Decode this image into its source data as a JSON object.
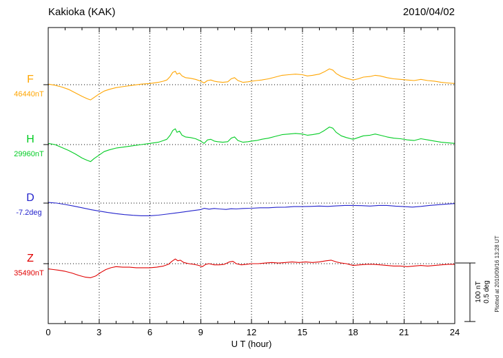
{
  "header": {
    "station_title": "Kakioka (KAK)",
    "date": "2010/04/02"
  },
  "axes": {
    "x_label": "U T (hour)",
    "x_tick_labels": [
      "0",
      "3",
      "6",
      "9",
      "12",
      "15",
      "18",
      "21",
      "24"
    ]
  },
  "scale_bar": {
    "nt_label": "100 nT",
    "deg_label": "0.5 deg"
  },
  "plot_note": "Plotted at 2010/09/16 13:28 UT",
  "chart_data": {
    "type": "line",
    "title": "Kakioka (KAK)",
    "date": "2010/04/02",
    "xlabel": "U T (hour)",
    "x_range": [
      0,
      24
    ],
    "x_ticks_hours": [
      0,
      3,
      6,
      9,
      12,
      15,
      18,
      21,
      24
    ],
    "grid": "dotted vertical gridlines every 3 hours; dotted horizontal baseline per component",
    "scale_reference": {
      "nT": 100,
      "deg": 0.5
    },
    "offsets_relative_to_baseline": true,
    "series": [
      {
        "name": "F",
        "baseline_label": "46440nT",
        "baseline_value": 46440,
        "unit": "nT",
        "color": "#FFA500",
        "points": [
          [
            0,
            1
          ],
          [
            0.4,
            -1
          ],
          [
            0.8,
            -4
          ],
          [
            1.2,
            -8
          ],
          [
            1.6,
            -14
          ],
          [
            2.0,
            -20
          ],
          [
            2.3,
            -24
          ],
          [
            2.5,
            -26
          ],
          [
            2.7,
            -22
          ],
          [
            3.0,
            -16
          ],
          [
            3.3,
            -11
          ],
          [
            3.6,
            -8
          ],
          [
            4.0,
            -5
          ],
          [
            4.5,
            -3
          ],
          [
            5.0,
            -1
          ],
          [
            5.5,
            1
          ],
          [
            6.0,
            2
          ],
          [
            6.5,
            4
          ],
          [
            6.8,
            6
          ],
          [
            7.0,
            8
          ],
          [
            7.2,
            14
          ],
          [
            7.35,
            21
          ],
          [
            7.5,
            23
          ],
          [
            7.6,
            18
          ],
          [
            7.75,
            20
          ],
          [
            7.9,
            15
          ],
          [
            8.1,
            12
          ],
          [
            8.4,
            11
          ],
          [
            8.7,
            9
          ],
          [
            9.0,
            6
          ],
          [
            9.2,
            3
          ],
          [
            9.4,
            7
          ],
          [
            9.6,
            8
          ],
          [
            9.8,
            6
          ],
          [
            10.0,
            5
          ],
          [
            10.3,
            4
          ],
          [
            10.6,
            5
          ],
          [
            10.8,
            10
          ],
          [
            11.0,
            12
          ],
          [
            11.2,
            7
          ],
          [
            11.5,
            4
          ],
          [
            11.8,
            5
          ],
          [
            12.0,
            6
          ],
          [
            12.3,
            7
          ],
          [
            12.6,
            8
          ],
          [
            13.0,
            10
          ],
          [
            13.4,
            13
          ],
          [
            13.8,
            16
          ],
          [
            14.2,
            17
          ],
          [
            14.6,
            18
          ],
          [
            15.0,
            17
          ],
          [
            15.3,
            15
          ],
          [
            15.6,
            16
          ],
          [
            16.0,
            18
          ],
          [
            16.3,
            22
          ],
          [
            16.6,
            27
          ],
          [
            16.8,
            25
          ],
          [
            17.0,
            19
          ],
          [
            17.3,
            14
          ],
          [
            17.6,
            11
          ],
          [
            18.0,
            8
          ],
          [
            18.3,
            10
          ],
          [
            18.6,
            13
          ],
          [
            19.0,
            14
          ],
          [
            19.3,
            16
          ],
          [
            19.6,
            15
          ],
          [
            20.0,
            12
          ],
          [
            20.4,
            10
          ],
          [
            20.8,
            9
          ],
          [
            21.2,
            8
          ],
          [
            21.6,
            7
          ],
          [
            22.0,
            9
          ],
          [
            22.4,
            7
          ],
          [
            22.8,
            6
          ],
          [
            23.2,
            4
          ],
          [
            23.6,
            3
          ],
          [
            24,
            2
          ]
        ]
      },
      {
        "name": "H",
        "baseline_label": "29960nT",
        "baseline_value": 29960,
        "unit": "nT",
        "color": "#00CC22",
        "points": [
          [
            0,
            2
          ],
          [
            0.4,
            0
          ],
          [
            0.8,
            -5
          ],
          [
            1.2,
            -10
          ],
          [
            1.6,
            -16
          ],
          [
            2.0,
            -23
          ],
          [
            2.3,
            -27
          ],
          [
            2.5,
            -29
          ],
          [
            2.7,
            -24
          ],
          [
            3.0,
            -18
          ],
          [
            3.3,
            -12
          ],
          [
            3.6,
            -9
          ],
          [
            4.0,
            -6
          ],
          [
            4.5,
            -4
          ],
          [
            5.0,
            -2
          ],
          [
            5.5,
            0
          ],
          [
            6.0,
            2
          ],
          [
            6.5,
            4
          ],
          [
            6.8,
            7
          ],
          [
            7.0,
            9
          ],
          [
            7.2,
            16
          ],
          [
            7.35,
            24
          ],
          [
            7.5,
            27
          ],
          [
            7.6,
            21
          ],
          [
            7.75,
            23
          ],
          [
            7.9,
            16
          ],
          [
            8.1,
            13
          ],
          [
            8.4,
            12
          ],
          [
            8.7,
            10
          ],
          [
            9.0,
            6
          ],
          [
            9.2,
            2
          ],
          [
            9.4,
            8
          ],
          [
            9.6,
            9
          ],
          [
            9.8,
            6
          ],
          [
            10.0,
            5
          ],
          [
            10.3,
            4
          ],
          [
            10.6,
            5
          ],
          [
            10.8,
            11
          ],
          [
            11.0,
            13
          ],
          [
            11.2,
            7
          ],
          [
            11.5,
            4
          ],
          [
            11.8,
            5
          ],
          [
            12.0,
            6
          ],
          [
            12.3,
            7
          ],
          [
            12.6,
            9
          ],
          [
            13.0,
            11
          ],
          [
            13.4,
            14
          ],
          [
            13.8,
            17
          ],
          [
            14.2,
            18
          ],
          [
            14.6,
            19
          ],
          [
            15.0,
            18
          ],
          [
            15.3,
            16
          ],
          [
            15.6,
            17
          ],
          [
            16.0,
            19
          ],
          [
            16.3,
            24
          ],
          [
            16.6,
            30
          ],
          [
            16.8,
            28
          ],
          [
            17.0,
            21
          ],
          [
            17.3,
            15
          ],
          [
            17.6,
            12
          ],
          [
            18.0,
            9
          ],
          [
            18.3,
            12
          ],
          [
            18.6,
            15
          ],
          [
            19.0,
            16
          ],
          [
            19.3,
            18
          ],
          [
            19.6,
            16
          ],
          [
            20.0,
            13
          ],
          [
            20.4,
            11
          ],
          [
            20.8,
            10
          ],
          [
            21.2,
            8
          ],
          [
            21.6,
            7
          ],
          [
            22.0,
            10
          ],
          [
            22.4,
            8
          ],
          [
            22.8,
            6
          ],
          [
            23.2,
            4
          ],
          [
            23.6,
            3
          ],
          [
            24,
            2
          ]
        ]
      },
      {
        "name": "D",
        "baseline_label": "-7.2deg",
        "baseline_value": -7.2,
        "unit": "deg",
        "color": "#2222CC",
        "points": [
          [
            0,
            0.005
          ],
          [
            0.5,
            0
          ],
          [
            1.0,
            -0.012
          ],
          [
            1.5,
            -0.025
          ],
          [
            2.0,
            -0.04
          ],
          [
            2.5,
            -0.055
          ],
          [
            3.0,
            -0.068
          ],
          [
            3.5,
            -0.08
          ],
          [
            4.0,
            -0.09
          ],
          [
            4.5,
            -0.098
          ],
          [
            5.0,
            -0.104
          ],
          [
            5.5,
            -0.108
          ],
          [
            6.0,
            -0.108
          ],
          [
            6.5,
            -0.103
          ],
          [
            7.0,
            -0.094
          ],
          [
            7.5,
            -0.085
          ],
          [
            8.0,
            -0.075
          ],
          [
            8.5,
            -0.065
          ],
          [
            9.0,
            -0.055
          ],
          [
            9.2,
            -0.045
          ],
          [
            9.5,
            -0.052
          ],
          [
            9.8,
            -0.046
          ],
          [
            10.1,
            -0.05
          ],
          [
            10.5,
            -0.054
          ],
          [
            10.8,
            -0.048
          ],
          [
            11.1,
            -0.05
          ],
          [
            11.5,
            -0.046
          ],
          [
            12.0,
            -0.044
          ],
          [
            12.5,
            -0.04
          ],
          [
            13.0,
            -0.04
          ],
          [
            13.5,
            -0.036
          ],
          [
            14.0,
            -0.035
          ],
          [
            14.5,
            -0.03
          ],
          [
            15.0,
            -0.03
          ],
          [
            15.5,
            -0.028
          ],
          [
            16.0,
            -0.025
          ],
          [
            16.5,
            -0.028
          ],
          [
            17.0,
            -0.024
          ],
          [
            17.5,
            -0.02
          ],
          [
            18.0,
            -0.02
          ],
          [
            18.5,
            -0.022
          ],
          [
            19.0,
            -0.025
          ],
          [
            19.5,
            -0.02
          ],
          [
            20.0,
            -0.02
          ],
          [
            20.5,
            -0.026
          ],
          [
            21.0,
            -0.03
          ],
          [
            21.5,
            -0.034
          ],
          [
            22.0,
            -0.028
          ],
          [
            22.5,
            -0.02
          ],
          [
            23.0,
            -0.014
          ],
          [
            23.5,
            -0.008
          ],
          [
            24,
            -0.004
          ]
        ]
      },
      {
        "name": "Z",
        "baseline_label": "35490nT",
        "baseline_value": 35490,
        "unit": "nT",
        "color": "#E00000",
        "points": [
          [
            0,
            -9
          ],
          [
            0.3,
            -10
          ],
          [
            0.6,
            -11
          ],
          [
            1.0,
            -13
          ],
          [
            1.4,
            -16
          ],
          [
            1.8,
            -20
          ],
          [
            2.2,
            -23
          ],
          [
            2.5,
            -24
          ],
          [
            2.8,
            -21
          ],
          [
            3.1,
            -15
          ],
          [
            3.4,
            -10
          ],
          [
            3.7,
            -7
          ],
          [
            4.0,
            -5
          ],
          [
            4.4,
            -6
          ],
          [
            4.8,
            -6
          ],
          [
            5.2,
            -7
          ],
          [
            5.6,
            -7
          ],
          [
            6.0,
            -7
          ],
          [
            6.4,
            -6
          ],
          [
            6.8,
            -4
          ],
          [
            7.1,
            -1
          ],
          [
            7.3,
            4
          ],
          [
            7.5,
            8
          ],
          [
            7.65,
            5
          ],
          [
            7.8,
            6
          ],
          [
            8.0,
            2
          ],
          [
            8.3,
            0
          ],
          [
            8.6,
            -1
          ],
          [
            8.9,
            -3
          ],
          [
            9.1,
            -5
          ],
          [
            9.3,
            -1
          ],
          [
            9.5,
            0
          ],
          [
            9.8,
            -2
          ],
          [
            10.1,
            -2
          ],
          [
            10.4,
            -1
          ],
          [
            10.7,
            3
          ],
          [
            10.9,
            4
          ],
          [
            11.1,
            0
          ],
          [
            11.4,
            -2
          ],
          [
            11.7,
            -1
          ],
          [
            12.0,
            0
          ],
          [
            12.4,
            0
          ],
          [
            12.8,
            1
          ],
          [
            13.2,
            2
          ],
          [
            13.6,
            1
          ],
          [
            14.0,
            2
          ],
          [
            14.4,
            3
          ],
          [
            14.8,
            2
          ],
          [
            15.2,
            3
          ],
          [
            15.6,
            2
          ],
          [
            16.0,
            3
          ],
          [
            16.4,
            5
          ],
          [
            16.7,
            6
          ],
          [
            17.0,
            3
          ],
          [
            17.3,
            1
          ],
          [
            17.6,
            0
          ],
          [
            18.0,
            -3
          ],
          [
            18.4,
            -2
          ],
          [
            18.8,
            -1
          ],
          [
            19.2,
            -1
          ],
          [
            19.6,
            -2
          ],
          [
            20.0,
            -3
          ],
          [
            20.4,
            -4
          ],
          [
            20.8,
            -4
          ],
          [
            21.2,
            -5
          ],
          [
            21.6,
            -4
          ],
          [
            22.0,
            -3
          ],
          [
            22.4,
            -4
          ],
          [
            22.8,
            -3
          ],
          [
            23.2,
            -2
          ],
          [
            23.6,
            -1
          ],
          [
            24,
            -1
          ]
        ]
      }
    ]
  }
}
